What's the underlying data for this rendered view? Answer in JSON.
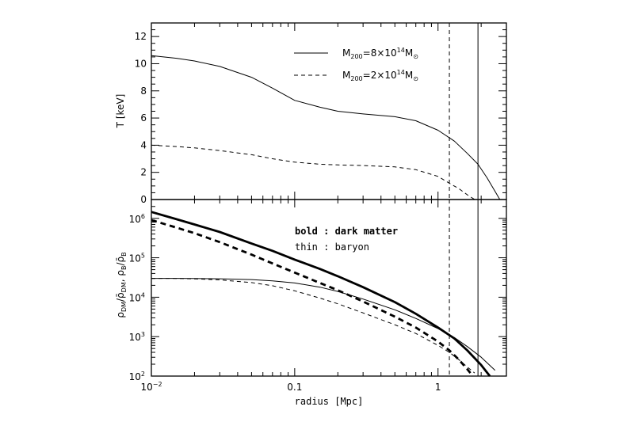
{
  "chart_data": [
    {
      "type": "line",
      "panel": "top",
      "xscale": "log",
      "xlim": [
        0.01,
        3.0
      ],
      "ylim": [
        0,
        13
      ],
      "ylabel": "T [keV]",
      "yticks": [
        0,
        2,
        4,
        6,
        8,
        10,
        12
      ],
      "legend": {
        "placement": "top-right",
        "entries": [
          {
            "label_pre": "M",
            "label_sub": "200",
            "label_mid": "=8×10",
            "label_sup": "14",
            "label_post": "M",
            "label_sub2": "⊙",
            "style": "solid"
          },
          {
            "label_pre": "M",
            "label_sub": "200",
            "label_mid": "=2×10",
            "label_sup": "14",
            "label_post": "M",
            "label_sub2": "⊙",
            "style": "dashed"
          }
        ]
      },
      "series": [
        {
          "style": "solid",
          "x": [
            0.01,
            0.015,
            0.02,
            0.03,
            0.05,
            0.07,
            0.1,
            0.15,
            0.2,
            0.3,
            0.5,
            0.7,
            1.0,
            1.3,
            1.6,
            1.9,
            2.2,
            2.5,
            2.7
          ],
          "y": [
            10.6,
            10.4,
            10.2,
            9.8,
            9.0,
            8.2,
            7.3,
            6.8,
            6.5,
            6.3,
            6.1,
            5.8,
            5.1,
            4.3,
            3.4,
            2.6,
            1.6,
            0.6,
            0.0
          ]
        },
        {
          "style": "dashed",
          "x": [
            0.01,
            0.015,
            0.02,
            0.03,
            0.05,
            0.07,
            0.1,
            0.15,
            0.2,
            0.3,
            0.5,
            0.7,
            1.0,
            1.2,
            1.4,
            1.6,
            1.8
          ],
          "y": [
            4.0,
            3.9,
            3.8,
            3.6,
            3.3,
            3.0,
            2.75,
            2.6,
            2.55,
            2.5,
            2.4,
            2.2,
            1.7,
            1.2,
            0.8,
            0.35,
            0.0
          ]
        }
      ],
      "vlines": [
        {
          "x": 1.2,
          "style": "dashed"
        },
        {
          "x": 1.9,
          "style": "solid"
        }
      ]
    },
    {
      "type": "line",
      "panel": "bottom",
      "xscale": "log",
      "yscale": "log",
      "xlim": [
        0.01,
        3.0
      ],
      "ylim": [
        100,
        3000000
      ],
      "xlabel": "radius [Mpc]",
      "ylabel": "ρDM/ρ̄DM, ρB/ρ̄B",
      "xticks": [
        {
          "value": 0.01,
          "base": "10",
          "exp": "−2"
        },
        {
          "value": 0.1,
          "label": "0.1"
        },
        {
          "value": 1,
          "label": "1"
        }
      ],
      "yticks": [
        {
          "value": 100,
          "exp": "2"
        },
        {
          "value": 1000,
          "exp": "3"
        },
        {
          "value": 10000,
          "exp": "4"
        },
        {
          "value": 100000,
          "exp": "5"
        },
        {
          "value": 1000000,
          "exp": "6"
        }
      ],
      "annotations": [
        {
          "text": "bold : dark matter",
          "weight": "bold"
        },
        {
          "text": "thin : baryon",
          "weight": "normal"
        }
      ],
      "series": [
        {
          "style": "solid-bold",
          "x": [
            0.01,
            0.015,
            0.02,
            0.03,
            0.05,
            0.07,
            0.1,
            0.15,
            0.2,
            0.3,
            0.5,
            0.7,
            1.0,
            1.3,
            1.6,
            2.0,
            2.3
          ],
          "y": [
            1450000,
            950000,
            700000,
            450000,
            230000,
            150000,
            90000,
            52000,
            34000,
            18000,
            7500,
            3800,
            1700,
            900,
            450,
            190,
            100
          ]
        },
        {
          "style": "dashed-bold",
          "x": [
            0.01,
            0.015,
            0.02,
            0.03,
            0.05,
            0.07,
            0.1,
            0.15,
            0.2,
            0.3,
            0.5,
            0.7,
            1.0,
            1.2,
            1.4,
            1.6,
            1.75
          ],
          "y": [
            900000,
            580000,
            420000,
            250000,
            120000,
            72000,
            42000,
            23000,
            15000,
            7800,
            3200,
            1700,
            750,
            450,
            260,
            150,
            100
          ]
        },
        {
          "style": "solid",
          "x": [
            0.01,
            0.015,
            0.02,
            0.03,
            0.05,
            0.07,
            0.1,
            0.15,
            0.2,
            0.3,
            0.5,
            0.7,
            1.0,
            1.3,
            1.6,
            2.0,
            2.5
          ],
          "y": [
            30000,
            30000,
            29800,
            29300,
            28000,
            26000,
            23000,
            18000,
            14000,
            9000,
            4800,
            2900,
            1600,
            950,
            560,
            300,
            140
          ]
        },
        {
          "style": "dashed",
          "x": [
            0.01,
            0.015,
            0.02,
            0.03,
            0.05,
            0.07,
            0.1,
            0.15,
            0.2,
            0.3,
            0.5,
            0.7,
            1.0,
            1.2,
            1.4,
            1.6,
            1.8
          ],
          "y": [
            30000,
            29900,
            29200,
            27500,
            23500,
            19500,
            14500,
            9500,
            6800,
            4000,
            2000,
            1200,
            600,
            400,
            260,
            170,
            120
          ]
        }
      ],
      "vlines": [
        {
          "x": 1.2,
          "style": "dashed"
        },
        {
          "x": 1.9,
          "style": "solid"
        }
      ]
    }
  ]
}
